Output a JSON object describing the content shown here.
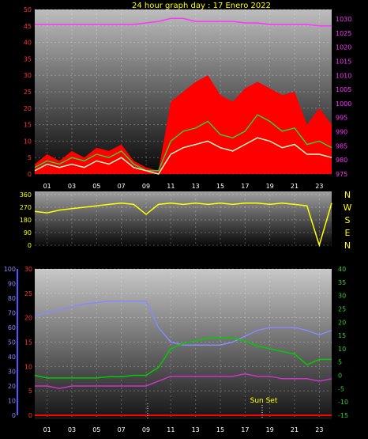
{
  "title": "24 hour graph day : 17 Enero 2022",
  "colors": {
    "title": "#ffff00",
    "wind": "#ff0000",
    "gust_fill": "#33cc33",
    "avg": "#ccffcc",
    "pressure": "#ff33ff",
    "dir": "#ffff00",
    "humidity": "#8888ff",
    "temperature": "#cc33cc",
    "dewpoint": "#00cc00",
    "solar": "#ff0000"
  },
  "x_ticks": [
    "01",
    "03",
    "05",
    "07",
    "09",
    "11",
    "13",
    "15",
    "17",
    "19",
    "21",
    "23"
  ],
  "wind_panel": {
    "left_ticks": [
      "50",
      "45",
      "40",
      "35",
      "30",
      "25",
      "20",
      "15",
      "10",
      "5",
      "0"
    ],
    "right_ticks": [
      "1030",
      "1025",
      "1020",
      "1015",
      "1010",
      "1005",
      "1000",
      "995",
      "990",
      "985",
      "980",
      "975"
    ]
  },
  "dir_panel": {
    "left_ticks": [
      "360",
      "270",
      "180",
      "90",
      "0"
    ],
    "compass": [
      "N",
      "W",
      "S",
      "E",
      "N"
    ]
  },
  "temp_panel": {
    "hum_ticks": [
      "100",
      "90",
      "80",
      "70",
      "60",
      "50",
      "40",
      "30",
      "20",
      "10",
      "0"
    ],
    "temp_ticks": [
      "30",
      "25",
      "20",
      "15",
      "10",
      "5",
      "0"
    ],
    "right_ticks": [
      "40",
      "35",
      "30",
      "25",
      "20",
      "15",
      "10",
      "5",
      "0",
      "-5",
      "-10",
      "-15"
    ],
    "sunset_label": "Sun Set"
  },
  "chart_data": [
    {
      "type": "line",
      "ylim": [
        0,
        50
      ],
      "y2lim": [
        975,
        1030
      ],
      "x": [
        0,
        1,
        2,
        3,
        4,
        5,
        6,
        7,
        8,
        9,
        10,
        11,
        12,
        13,
        14,
        15,
        16,
        17,
        18,
        19,
        20,
        21,
        22,
        23,
        24
      ],
      "series": [
        {
          "values": [
            3,
            6,
            4,
            7,
            5,
            8,
            7,
            9,
            4,
            2,
            1,
            22,
            25,
            28,
            30,
            24,
            22,
            26,
            28,
            26,
            24,
            25,
            15,
            20,
            15
          ]
        },
        {
          "values": [
            2,
            4,
            3,
            5,
            4,
            6,
            5,
            7,
            3,
            1,
            1,
            10,
            13,
            14,
            16,
            12,
            11,
            13,
            18,
            16,
            13,
            14,
            9,
            10,
            8
          ]
        },
        {
          "values": [
            1,
            3,
            2,
            3,
            2,
            4,
            3,
            5,
            2,
            1,
            0,
            6,
            8,
            9,
            10,
            8,
            7,
            9,
            11,
            10,
            8,
            9,
            6,
            6,
            5
          ]
        },
        {
          "values": [
            1025,
            1025,
            1025,
            1025,
            1025,
            1025,
            1025,
            1025,
            1025,
            1025.5,
            1026,
            1027,
            1027,
            1026,
            1026,
            1026,
            1026,
            1025.5,
            1025.5,
            1025,
            1025,
            1025,
            1025,
            1024.5,
            1024.5
          ]
        }
      ]
    },
    {
      "type": "line",
      "ylim": [
        0,
        360
      ],
      "x": [
        0,
        1,
        2,
        3,
        4,
        5,
        6,
        7,
        8,
        9,
        10,
        11,
        12,
        13,
        14,
        15,
        16,
        17,
        18,
        19,
        20,
        21,
        22,
        23,
        24
      ],
      "series": [
        {
          "values": [
            240,
            230,
            250,
            260,
            270,
            280,
            290,
            300,
            290,
            220,
            290,
            300,
            290,
            300,
            290,
            300,
            290,
            300,
            300,
            290,
            300,
            290,
            280,
            0,
            300
          ]
        }
      ]
    },
    {
      "type": "line",
      "x": [
        0,
        1,
        2,
        3,
        4,
        5,
        6,
        7,
        8,
        9,
        10,
        11,
        12,
        13,
        14,
        15,
        16,
        17,
        18,
        19,
        20,
        21,
        22,
        23,
        24
      ],
      "series": [
        {
          "values": [
            68,
            70,
            72,
            74,
            76,
            77,
            78,
            78,
            78,
            78,
            60,
            50,
            48,
            48,
            48,
            48,
            50,
            54,
            58,
            60,
            60,
            60,
            58,
            55,
            58
          ]
        },
        {
          "values": [
            6,
            6,
            5.5,
            6,
            6,
            6,
            6,
            6,
            6,
            6,
            7,
            8,
            8,
            8,
            8,
            8,
            8,
            8.5,
            8,
            8,
            7.5,
            7.5,
            7.5,
            7,
            7.5
          ]
        },
        {
          "values": [
            0,
            -1,
            -1,
            -1,
            -1,
            -1,
            -0.5,
            -0.5,
            0,
            0,
            3,
            10,
            12,
            13,
            14,
            14,
            14,
            13,
            11,
            10,
            9,
            8,
            4,
            6,
            6
          ]
        },
        {
          "values": [
            0,
            0,
            0,
            0,
            0,
            0,
            0,
            0,
            0,
            0,
            0,
            0,
            0,
            0,
            0,
            0,
            0,
            0,
            0,
            0,
            0,
            0,
            0,
            0,
            0
          ]
        }
      ]
    }
  ]
}
